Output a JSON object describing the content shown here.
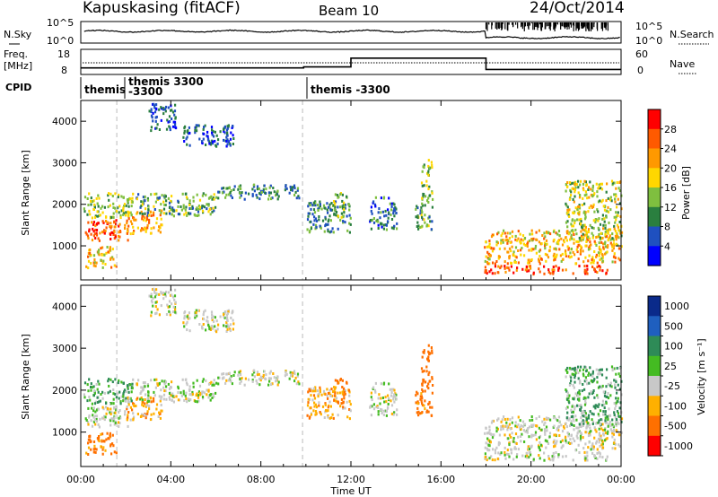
{
  "header": {
    "station": "Kapuskasing (fitACF)",
    "beam": "Beam 10",
    "date": "24/Oct/2014"
  },
  "noise_panel": {
    "left_label": "N.Sky",
    "right_label": "N.Search",
    "left_ticks": [
      "10^5",
      "10^0"
    ],
    "right_ticks": [
      "10^5",
      "10^0"
    ]
  },
  "freq_panel": {
    "left_label_1": "Freq.",
    "left_label_2": "[MHz]",
    "right_label": "Nave",
    "left_ticks": [
      "18",
      "8"
    ],
    "right_ticks": [
      "60",
      "0"
    ]
  },
  "cpid": {
    "label": "CPID",
    "segments": [
      {
        "start_hour": 0.0,
        "line1": "themis",
        "line2": ""
      },
      {
        "start_hour": 1.6,
        "line1": "themis 3300",
        "line2": "-3300"
      },
      {
        "start_hour": 9.85,
        "line1": "themis -3300",
        "line2": ""
      }
    ]
  },
  "x_axis": {
    "label": "Time UT",
    "ticks": [
      "00:00",
      "04:00",
      "08:00",
      "12:00",
      "16:00",
      "20:00",
      "00:00"
    ],
    "range_hours": [
      0,
      24
    ]
  },
  "power_panel": {
    "ylabel": "Slant Range [km]",
    "yticks": [
      "1000",
      "2000",
      "3000",
      "4000"
    ],
    "colorbar_label": "Power [dB]",
    "colorbar_ticks": [
      "4",
      "8",
      "12",
      "16",
      "20",
      "24",
      "28"
    ],
    "colors": [
      "#0000ff",
      "#1f50c0",
      "#2a7f3f",
      "#7fbf3f",
      "#ffd700",
      "#ff9900",
      "#ff5a00",
      "#ff0000"
    ]
  },
  "velocity_panel": {
    "ylabel": "Slant Range [km]",
    "yticks": [
      "1000",
      "2000",
      "3000",
      "4000"
    ],
    "colorbar_label": "Velocity [m s⁻¹]",
    "colorbar_ticks": [
      "1000",
      "500",
      "100",
      "25",
      "-25",
      "-100",
      "-500",
      "-1000"
    ],
    "colors": [
      "#0a2a8a",
      "#1f5fbf",
      "#2e8b57",
      "#44bb22",
      "#c8c8c8",
      "#ffb000",
      "#ff7000",
      "#ff0000"
    ]
  },
  "chart_data": {
    "type": "heatmap",
    "x_units": "hours UT",
    "y_units": "km",
    "xlim": [
      0,
      24
    ],
    "ylim": [
      180,
      4500
    ],
    "panels": [
      "power",
      "velocity"
    ],
    "echo_regions": [
      {
        "t": [
          0.1,
          2.1
        ],
        "r": [
          1150,
          1650
        ],
        "power": 26,
        "vel": 0
      },
      {
        "t": [
          0.1,
          2.3
        ],
        "r": [
          1700,
          2300
        ],
        "power": 14,
        "vel": 60
      },
      {
        "t": [
          2.0,
          3.6
        ],
        "r": [
          1300,
          1900
        ],
        "power": 22,
        "vel": -60
      },
      {
        "t": [
          2.3,
          6.0
        ],
        "r": [
          1750,
          2300
        ],
        "power": 12,
        "vel": 10
      },
      {
        "t": [
          6.0,
          9.7
        ],
        "r": [
          2150,
          2500
        ],
        "power": 10,
        "vel": 0
      },
      {
        "t": [
          0.2,
          1.6
        ],
        "r": [
          500,
          1000
        ],
        "power": 20,
        "vel": -200
      },
      {
        "t": [
          3.0,
          4.2
        ],
        "r": [
          3800,
          4450
        ],
        "power": 6,
        "vel": 0
      },
      {
        "t": [
          4.5,
          6.8
        ],
        "r": [
          3400,
          3950
        ],
        "power": 6,
        "vel": 0
      },
      {
        "t": [
          10.0,
          12.0
        ],
        "r": [
          1350,
          2100
        ],
        "power": 10,
        "vel": -60
      },
      {
        "t": [
          11.2,
          11.8
        ],
        "r": [
          1700,
          2300
        ],
        "power": 14,
        "vel": -200
      },
      {
        "t": [
          12.8,
          14.0
        ],
        "r": [
          1400,
          2200
        ],
        "power": 8,
        "vel": 0
      },
      {
        "t": [
          14.8,
          15.6
        ],
        "r": [
          1400,
          2000
        ],
        "power": 12,
        "vel": -200
      },
      {
        "t": [
          15.1,
          15.6
        ],
        "r": [
          2000,
          3150
        ],
        "power": 14,
        "vel": -300
      },
      {
        "t": [
          17.9,
          24.0
        ],
        "r": [
          600,
          1400
        ],
        "power": 20,
        "vel": 0
      },
      {
        "t": [
          17.9,
          23.4
        ],
        "r": [
          350,
          550
        ],
        "power": 28,
        "vel": 0
      },
      {
        "t": [
          21.5,
          24.0
        ],
        "r": [
          1200,
          2600
        ],
        "power": 16,
        "vel": 60
      }
    ],
    "noise_sky_steps": [
      [
        0.15,
        0.55
      ],
      [
        18.0,
        0.25
      ],
      [
        24,
        0.25
      ]
    ],
    "freq_mhz_steps": [
      [
        0,
        10.6
      ],
      [
        9.9,
        11.0
      ],
      [
        12.0,
        14.5
      ],
      [
        18.0,
        10.0
      ],
      [
        24,
        10.0
      ]
    ]
  }
}
